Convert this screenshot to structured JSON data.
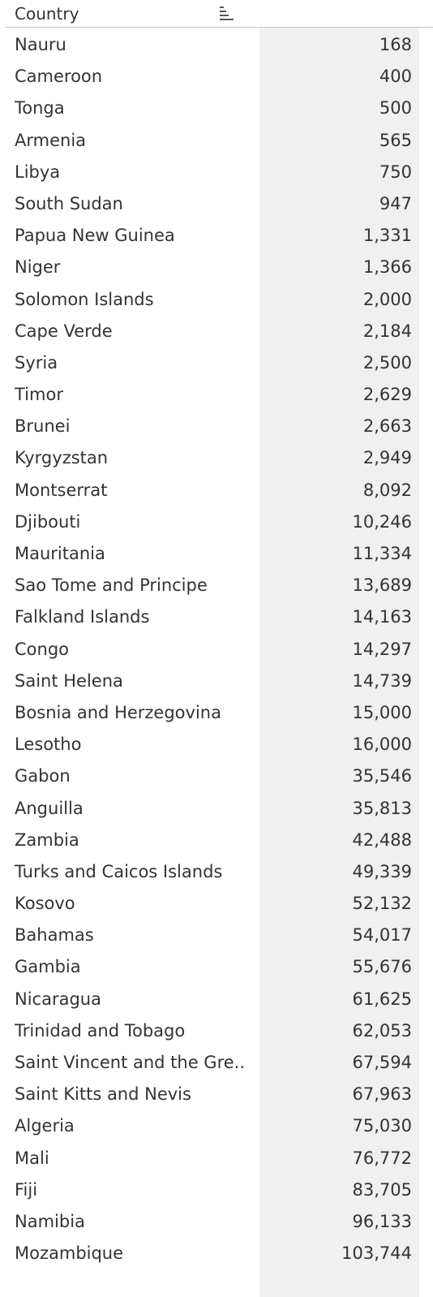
{
  "header": {
    "country_label": "Country",
    "sort_icon": "sort-descending-icon"
  },
  "rows": [
    {
      "country": "Nauru",
      "value": "168"
    },
    {
      "country": "Cameroon",
      "value": "400"
    },
    {
      "country": "Tonga",
      "value": "500"
    },
    {
      "country": "Armenia",
      "value": "565"
    },
    {
      "country": "Libya",
      "value": "750"
    },
    {
      "country": "South Sudan",
      "value": "947"
    },
    {
      "country": "Papua New Guinea",
      "value": "1,331"
    },
    {
      "country": "Niger",
      "value": "1,366"
    },
    {
      "country": "Solomon Islands",
      "value": "2,000"
    },
    {
      "country": "Cape Verde",
      "value": "2,184"
    },
    {
      "country": "Syria",
      "value": "2,500"
    },
    {
      "country": "Timor",
      "value": "2,629"
    },
    {
      "country": "Brunei",
      "value": "2,663"
    },
    {
      "country": "Kyrgyzstan",
      "value": "2,949"
    },
    {
      "country": "Montserrat",
      "value": "8,092"
    },
    {
      "country": "Djibouti",
      "value": "10,246"
    },
    {
      "country": "Mauritania",
      "value": "11,334"
    },
    {
      "country": "Sao Tome and Principe",
      "value": "13,689"
    },
    {
      "country": "Falkland Islands",
      "value": "14,163"
    },
    {
      "country": "Congo",
      "value": "14,297"
    },
    {
      "country": "Saint Helena",
      "value": "14,739"
    },
    {
      "country": "Bosnia and Herzegovina",
      "value": "15,000"
    },
    {
      "country": "Lesotho",
      "value": "16,000"
    },
    {
      "country": "Gabon",
      "value": "35,546"
    },
    {
      "country": "Anguilla",
      "value": "35,813"
    },
    {
      "country": "Zambia",
      "value": "42,488"
    },
    {
      "country": "Turks and Caicos Islands",
      "value": "49,339"
    },
    {
      "country": "Kosovo",
      "value": "52,132"
    },
    {
      "country": "Bahamas",
      "value": "54,017"
    },
    {
      "country": "Gambia",
      "value": "55,676"
    },
    {
      "country": "Nicaragua",
      "value": "61,625"
    },
    {
      "country": "Trinidad and Tobago",
      "value": "62,053"
    },
    {
      "country": "Saint Vincent and the Gre..",
      "value": "67,594"
    },
    {
      "country": "Saint Kitts and Nevis",
      "value": "67,963"
    },
    {
      "country": "Algeria",
      "value": "75,030"
    },
    {
      "country": "Mali",
      "value": "76,772"
    },
    {
      "country": "Fiji",
      "value": "83,705"
    },
    {
      "country": "Namibia",
      "value": "96,133"
    },
    {
      "country": "Mozambique",
      "value": "103,744"
    }
  ]
}
